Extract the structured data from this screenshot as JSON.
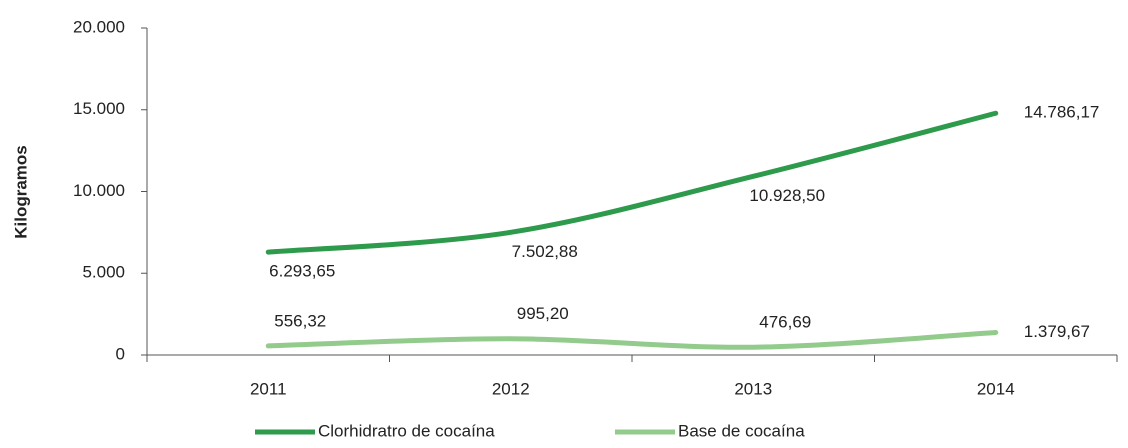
{
  "chart_data": {
    "type": "line",
    "y_label": "Kilogramos",
    "categories": [
      "2011",
      "2012",
      "2013",
      "2014"
    ],
    "series": [
      {
        "name": "Clorhidratro de cocaína",
        "color": "#2e9a4b",
        "values": [
          6293.65,
          7502.88,
          10928.5,
          14786.17
        ],
        "value_labels": [
          "6.293,65",
          "7.502,88",
          "10.928,50",
          "14.786,17"
        ]
      },
      {
        "name": "Base de cocaína",
        "color": "#93cb8d",
        "values": [
          556.32,
          995.2,
          476.69,
          1379.67
        ],
        "value_labels": [
          "556,32",
          "995,20",
          "476,69",
          "1.379,67"
        ]
      }
    ],
    "ylim": [
      0,
      20000
    ],
    "yticks": [
      {
        "value": 0,
        "label": "0"
      },
      {
        "value": 5000,
        "label": "5.000"
      },
      {
        "value": 10000,
        "label": "10.000"
      },
      {
        "value": 15000,
        "label": "15.000"
      },
      {
        "value": 20000,
        "label": "20.000"
      }
    ],
    "smooth": true
  }
}
